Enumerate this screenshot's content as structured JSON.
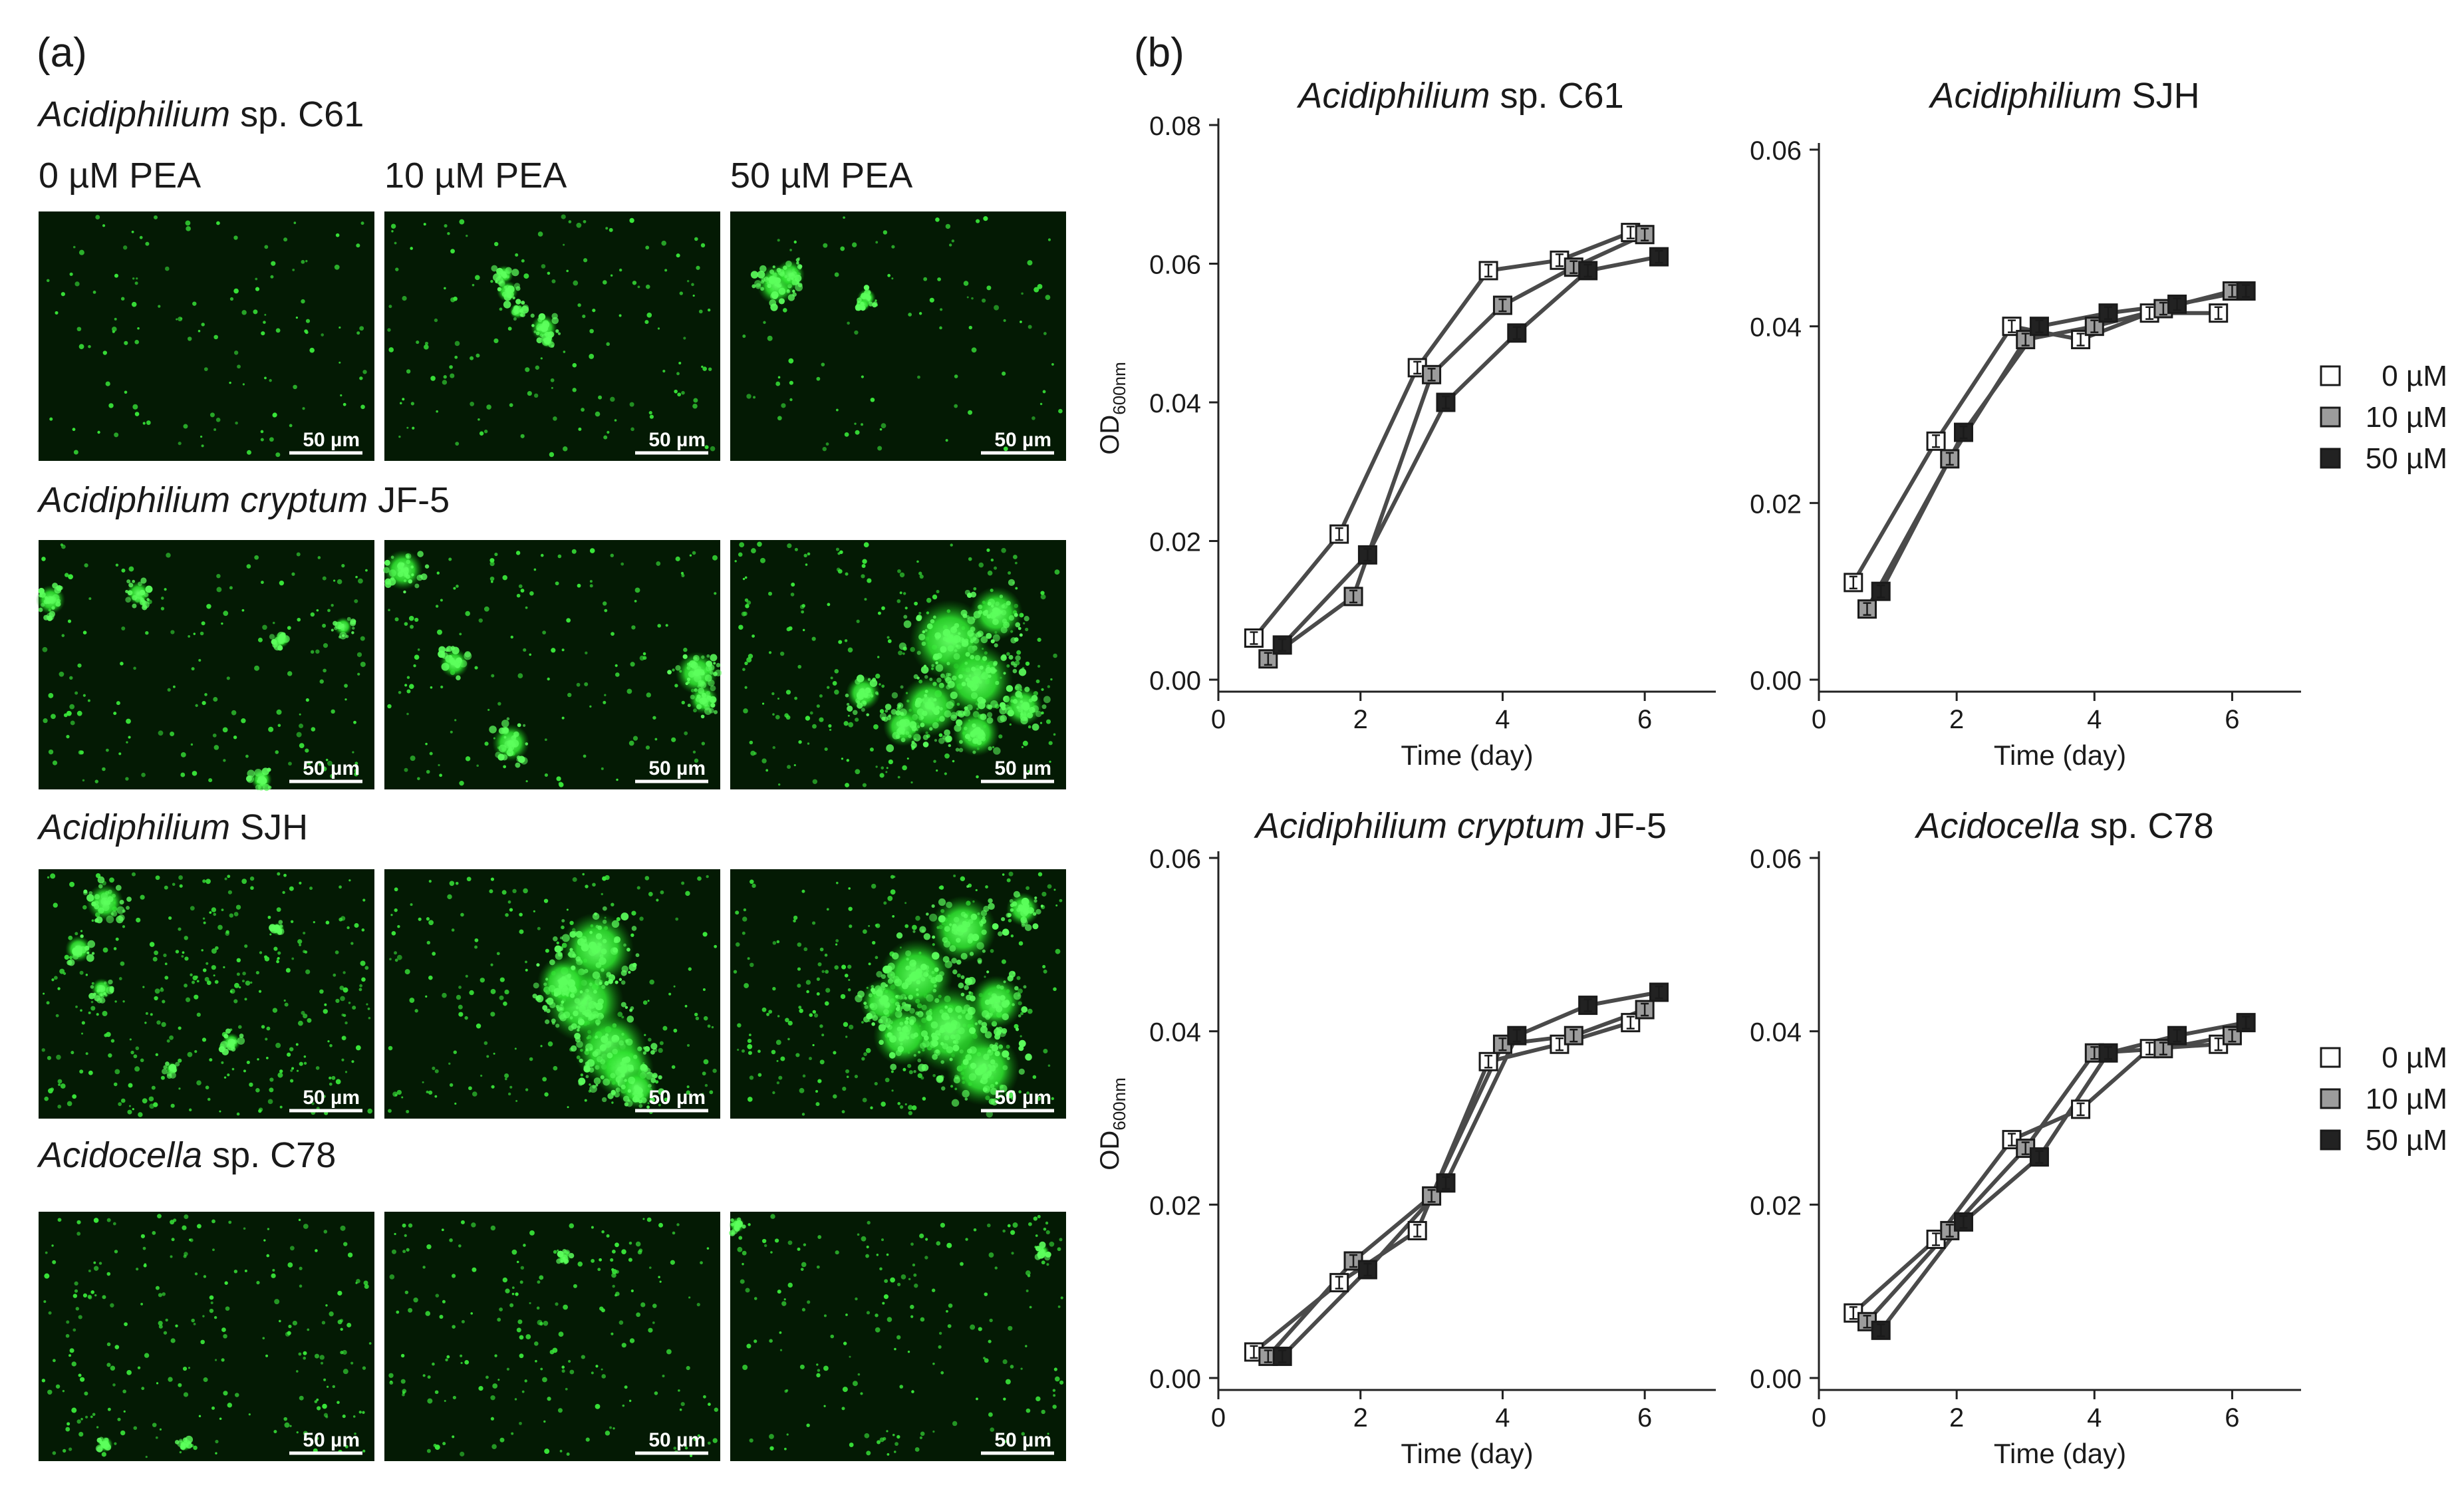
{
  "panel_a": {
    "label": "(a)",
    "column_headers": [
      "0 µM PEA",
      "10 µM PEA",
      "50 µM PEA"
    ],
    "scale_bar": "50 µm",
    "rows": [
      {
        "genus": "Acidiphilium",
        "rest": " sp. C61"
      },
      {
        "genus": "Acidiphilium cryptum",
        "rest": " JF-5"
      },
      {
        "genus": "Acidiphilium",
        "rest": " SJH"
      },
      {
        "genus": "Acidocella",
        "rest": " sp. C78"
      }
    ]
  },
  "panel_b": {
    "label": "(b)"
  },
  "legend": [
    "0 µM",
    "10 µM",
    "50 µM"
  ],
  "chart_data": [
    {
      "type": "line",
      "title_italic": "Acidiphilium",
      "title_rest": " sp. C61",
      "xlabel": "Time (day)",
      "ylabel_main": "OD",
      "ylabel_sub": "600nm",
      "xlim": [
        0,
        7
      ],
      "ylim": [
        0,
        0.08
      ],
      "xticks": [
        0,
        2,
        4,
        6
      ],
      "yticks": [
        0,
        0.02,
        0.04,
        0.06,
        0.08
      ],
      "ytick_labels": [
        "0.00",
        "0.02",
        "0.04",
        "0.06",
        "0.08"
      ],
      "series": [
        {
          "name": "0 µM",
          "x": [
            0.5,
            1.7,
            2.8,
            3.8,
            4.8,
            5.8
          ],
          "y": [
            0.006,
            0.021,
            0.045,
            0.059,
            0.0605,
            0.0645
          ]
        },
        {
          "name": "10 µM",
          "x": [
            0.7,
            1.9,
            3.0,
            4.0,
            5.0,
            6.0
          ],
          "y": [
            0.003,
            0.012,
            0.044,
            0.054,
            0.0595,
            0.0642
          ]
        },
        {
          "name": "50 µM",
          "x": [
            0.9,
            2.1,
            3.2,
            4.2,
            5.2,
            6.2
          ],
          "y": [
            0.005,
            0.018,
            0.04,
            0.05,
            0.059,
            0.061
          ]
        }
      ]
    },
    {
      "type": "line",
      "title_italic": "Acidiphilium",
      "title_rest": " SJH",
      "xlabel": "Time (day)",
      "ylabel_main": "",
      "ylabel_sub": "",
      "xlim": [
        0,
        7
      ],
      "ylim": [
        0,
        0.06
      ],
      "xticks": [
        0,
        2,
        4,
        6
      ],
      "yticks": [
        0,
        0.02,
        0.04,
        0.06
      ],
      "ytick_labels": [
        "0.00",
        "0.02",
        "0.04",
        "0.06"
      ],
      "series": [
        {
          "name": "0 µM",
          "x": [
            0.5,
            1.7,
            2.8,
            3.8,
            4.8,
            5.8
          ],
          "y": [
            0.011,
            0.027,
            0.04,
            0.0385,
            0.0415,
            0.0415
          ]
        },
        {
          "name": "10 µM",
          "x": [
            0.7,
            1.9,
            3.0,
            4.0,
            5.0,
            6.0
          ],
          "y": [
            0.008,
            0.025,
            0.0385,
            0.04,
            0.042,
            0.044
          ]
        },
        {
          "name": "50 µM",
          "x": [
            0.9,
            2.1,
            3.2,
            4.2,
            5.2,
            6.2
          ],
          "y": [
            0.01,
            0.028,
            0.04,
            0.0415,
            0.0425,
            0.044
          ]
        }
      ]
    },
    {
      "type": "line",
      "title_italic": "Acidiphilium cryptum",
      "title_rest": " JF-5",
      "xlabel": "Time (day)",
      "ylabel_main": "OD",
      "ylabel_sub": "600nm",
      "xlim": [
        0,
        7
      ],
      "ylim": [
        0,
        0.06
      ],
      "xticks": [
        0,
        2,
        4,
        6
      ],
      "yticks": [
        0,
        0.02,
        0.04,
        0.06
      ],
      "ytick_labels": [
        "0.00",
        "0.02",
        "0.04",
        "0.06"
      ],
      "series": [
        {
          "name": "0 µM",
          "x": [
            0.5,
            1.7,
            2.8,
            3.8,
            4.8,
            5.8
          ],
          "y": [
            0.003,
            0.011,
            0.017,
            0.0365,
            0.0385,
            0.041
          ]
        },
        {
          "name": "10 µM",
          "x": [
            0.7,
            1.9,
            3.0,
            4.0,
            5.0,
            6.0
          ],
          "y": [
            0.0025,
            0.0135,
            0.021,
            0.0385,
            0.0395,
            0.0425
          ]
        },
        {
          "name": "50 µM",
          "x": [
            0.9,
            2.1,
            3.2,
            4.2,
            5.2,
            6.2
          ],
          "y": [
            0.0025,
            0.0125,
            0.0225,
            0.0395,
            0.043,
            0.0445
          ]
        }
      ]
    },
    {
      "type": "line",
      "title_italic": "Acidocella",
      "title_rest": " sp. C78",
      "xlabel": "Time (day)",
      "ylabel_main": "",
      "ylabel_sub": "",
      "xlim": [
        0,
        7
      ],
      "ylim": [
        0,
        0.06
      ],
      "xticks": [
        0,
        2,
        4,
        6
      ],
      "yticks": [
        0,
        0.02,
        0.04,
        0.06
      ],
      "ytick_labels": [
        "0.00",
        "0.02",
        "0.04",
        "0.06"
      ],
      "series": [
        {
          "name": "0 µM",
          "x": [
            0.5,
            1.7,
            2.8,
            3.8,
            4.8,
            5.8
          ],
          "y": [
            0.0075,
            0.016,
            0.0275,
            0.031,
            0.038,
            0.0385
          ]
        },
        {
          "name": "10 µM",
          "x": [
            0.7,
            1.9,
            3.0,
            4.0,
            5.0,
            6.0
          ],
          "y": [
            0.0065,
            0.017,
            0.0265,
            0.0375,
            0.038,
            0.0395
          ]
        },
        {
          "name": "50 µM",
          "x": [
            0.9,
            2.1,
            3.2,
            4.2,
            5.2,
            6.2
          ],
          "y": [
            0.0055,
            0.018,
            0.0255,
            0.0375,
            0.0395,
            0.041
          ]
        }
      ]
    }
  ]
}
